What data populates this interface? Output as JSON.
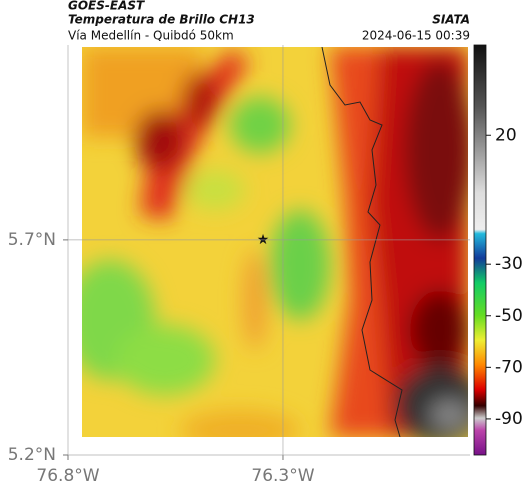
{
  "header": {
    "source": "GOES-EAST",
    "product": "Temperatura de Brillo CH13",
    "organization": "SIATA",
    "route": "Vía Medellín - Quibdó 50km",
    "timestamp": "2024-06-15 00:39"
  },
  "chart_data": {
    "type": "map",
    "xlim": [
      -76.8,
      -75.865
    ],
    "ylim": [
      5.2,
      6.153
    ],
    "xticks": [
      {
        "value": -76.8,
        "label": "76.8°W"
      },
      {
        "value": -76.3,
        "label": "76.3°W"
      }
    ],
    "yticks": [
      {
        "value": 5.2,
        "label": "5.2°N"
      },
      {
        "value": 5.7,
        "label": "5.7°N"
      }
    ],
    "grid": true,
    "colorbar": {
      "lim": [
        -104,
        55
      ],
      "ticks": [
        20,
        -30,
        -50,
        -70,
        -90
      ]
    }
  }
}
